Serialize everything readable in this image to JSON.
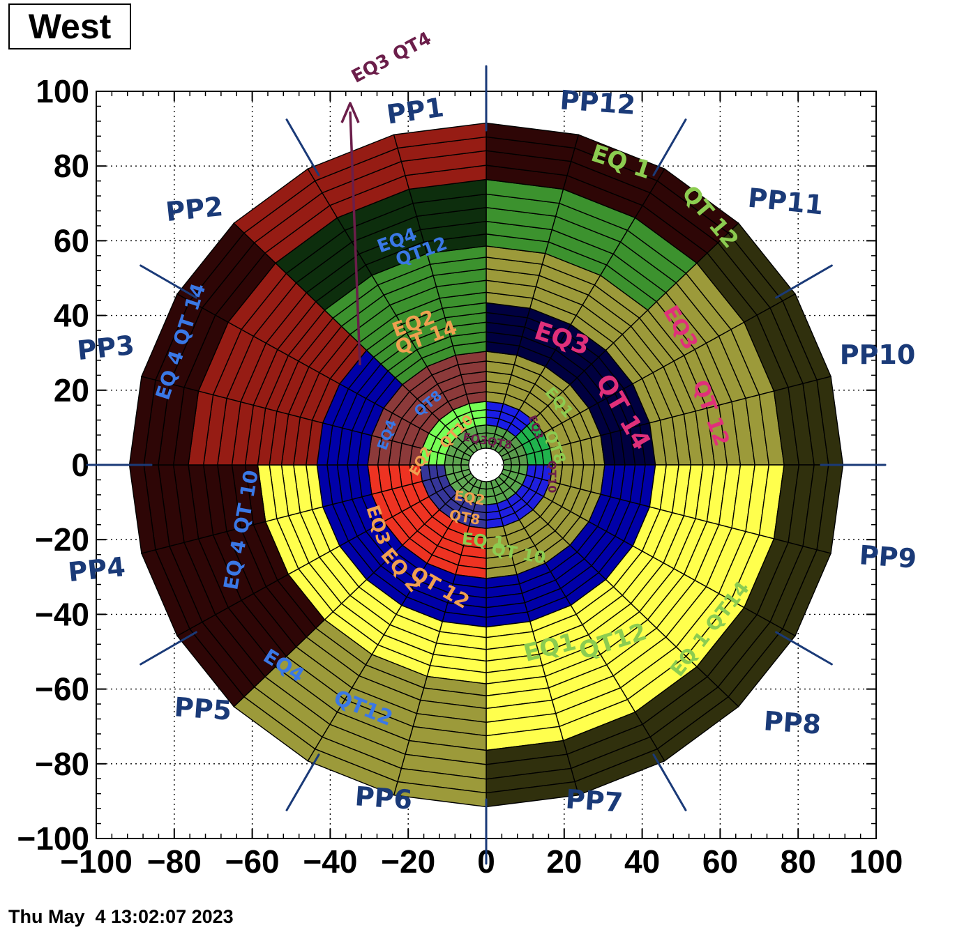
{
  "title": "West",
  "timestamp": "Thu May  4 13:02:07 2023",
  "chart_data": {
    "type": "polar-segment-map",
    "xlim": [
      -100,
      100
    ],
    "ylim": [
      -100,
      100
    ],
    "x_ticks": [
      -100,
      -80,
      -60,
      -40,
      -20,
      0,
      20,
      40,
      60,
      80,
      100
    ],
    "y_ticks": [
      -100,
      -80,
      -60,
      -40,
      -20,
      0,
      20,
      40,
      60,
      80,
      100
    ],
    "x_tick_labels": [
      "−100",
      "−80",
      "−60",
      "−40",
      "−20",
      "0",
      "20",
      "40",
      "60",
      "80",
      "100"
    ],
    "y_tick_labels": [
      "−100",
      "−80",
      "−60",
      "−40",
      "−20",
      "0",
      "20",
      "40",
      "60",
      "80",
      "100"
    ],
    "grid": true,
    "n_sectors": 24,
    "ring_radii": [
      4.5,
      6.5,
      8.6,
      10.7,
      12.8,
      14.8,
      17.0,
      19.6,
      22.4,
      25.0,
      27.8,
      30.4,
      33.0,
      35.6,
      38.2,
      40.8,
      43.4,
      46.2,
      49.4,
      52.5,
      55.6,
      58.6,
      61.8,
      65.2,
      68.9,
      72.5,
      76.4,
      80.2,
      84.1,
      87.8,
      91.5
    ],
    "regions": [
      {
        "from_sector": 0,
        "to_sector": 3,
        "ring_from": 0,
        "ring_to": 3,
        "color": "#54a049"
      },
      {
        "from_sector": 3,
        "to_sector": 6,
        "ring_from": 0,
        "ring_to": 3,
        "color": "#5a9b4c"
      },
      {
        "from_sector": 6,
        "to_sector": 12,
        "ring_from": 0,
        "ring_to": 3,
        "color": "#5aa64e"
      },
      {
        "from_sector": 12,
        "to_sector": 18,
        "ring_from": 0,
        "ring_to": 3,
        "color": "#62aa55"
      },
      {
        "from_sector": 18,
        "to_sector": 24,
        "ring_from": 0,
        "ring_to": 3,
        "color": "#5ea650"
      },
      {
        "from_sector": 0,
        "to_sector": 3,
        "ring_from": 3,
        "ring_to": 6,
        "color": "#1a1de6"
      },
      {
        "from_sector": 3,
        "to_sector": 6,
        "ring_from": 3,
        "ring_to": 6,
        "color": "#20b34d"
      },
      {
        "from_sector": 6,
        "to_sector": 12,
        "ring_from": 3,
        "ring_to": 6,
        "color": "#1f1fe0"
      },
      {
        "from_sector": 12,
        "to_sector": 18,
        "ring_from": 3,
        "ring_to": 6,
        "color": "#363699"
      },
      {
        "from_sector": 18,
        "to_sector": 24,
        "ring_from": 3,
        "ring_to": 6,
        "color": "#77ff55"
      },
      {
        "from_sector": 0,
        "to_sector": 6,
        "ring_from": 6,
        "ring_to": 11,
        "color": "#9c9a3a"
      },
      {
        "from_sector": 6,
        "to_sector": 12,
        "ring_from": 6,
        "ring_to": 11,
        "color": "#9c9a3a"
      },
      {
        "from_sector": 12,
        "to_sector": 18,
        "ring_from": 6,
        "ring_to": 11,
        "color": "#ee3322"
      },
      {
        "from_sector": 18,
        "to_sector": 24,
        "ring_from": 6,
        "ring_to": 11,
        "color": "#8c3a3a"
      },
      {
        "from_sector": 0,
        "to_sector": 6,
        "ring_from": 11,
        "ring_to": 16,
        "color": "#000040"
      },
      {
        "from_sector": 6,
        "to_sector": 12,
        "ring_from": 11,
        "ring_to": 16,
        "color": "#0000a8"
      },
      {
        "from_sector": 12,
        "to_sector": 21,
        "ring_from": 11,
        "ring_to": 16,
        "color": "#0000a8"
      },
      {
        "from_sector": 21,
        "to_sector": 24,
        "ring_from": 11,
        "ring_to": 16,
        "color": "#3c922e"
      },
      {
        "from_sector": 0,
        "to_sector": 6,
        "ring_from": 16,
        "ring_to": 21,
        "color": "#9c9a3a"
      },
      {
        "from_sector": 6,
        "to_sector": 12,
        "ring_from": 16,
        "ring_to": 21,
        "color": "#ffff4d"
      },
      {
        "from_sector": 12,
        "to_sector": 18,
        "ring_from": 16,
        "ring_to": 21,
        "color": "#ffff4d"
      },
      {
        "from_sector": 18,
        "to_sector": 21,
        "ring_from": 16,
        "ring_to": 21,
        "color": "#961c14"
      },
      {
        "from_sector": 21,
        "to_sector": 24,
        "ring_from": 16,
        "ring_to": 21,
        "color": "#3c922e"
      },
      {
        "from_sector": 0,
        "to_sector": 3,
        "ring_from": 21,
        "ring_to": 26,
        "color": "#3c922e"
      },
      {
        "from_sector": 3,
        "to_sector": 6,
        "ring_from": 21,
        "ring_to": 26,
        "color": "#9c9a3a"
      },
      {
        "from_sector": 6,
        "to_sector": 9,
        "ring_from": 21,
        "ring_to": 26,
        "color": "#ffff4d"
      },
      {
        "from_sector": 9,
        "to_sector": 12,
        "ring_from": 21,
        "ring_to": 26,
        "color": "#ffff4d"
      },
      {
        "from_sector": 12,
        "to_sector": 15,
        "ring_from": 21,
        "ring_to": 26,
        "color": "#9c9a3a"
      },
      {
        "from_sector": 15,
        "to_sector": 18,
        "ring_from": 21,
        "ring_to": 26,
        "color": "#2e0606"
      },
      {
        "from_sector": 18,
        "to_sector": 21,
        "ring_from": 21,
        "ring_to": 26,
        "color": "#961c14"
      },
      {
        "from_sector": 21,
        "to_sector": 24,
        "ring_from": 21,
        "ring_to": 26,
        "color": "#0d2e0d"
      },
      {
        "from_sector": 0,
        "to_sector": 3,
        "ring_from": 26,
        "ring_to": 31,
        "color": "#2e0606"
      },
      {
        "from_sector": 3,
        "to_sector": 6,
        "ring_from": 26,
        "ring_to": 31,
        "color": "#30300d"
      },
      {
        "from_sector": 6,
        "to_sector": 9,
        "ring_from": 26,
        "ring_to": 31,
        "color": "#30300d"
      },
      {
        "from_sector": 9,
        "to_sector": 12,
        "ring_from": 26,
        "ring_to": 31,
        "color": "#30300d"
      },
      {
        "from_sector": 12,
        "to_sector": 15,
        "ring_from": 26,
        "ring_to": 31,
        "color": "#9c9a3a"
      },
      {
        "from_sector": 15,
        "to_sector": 18,
        "ring_from": 26,
        "ring_to": 31,
        "color": "#2e0606"
      },
      {
        "from_sector": 18,
        "to_sector": 21,
        "ring_from": 26,
        "ring_to": 31,
        "color": "#2e0606"
      },
      {
        "from_sector": 21,
        "to_sector": 24,
        "ring_from": 26,
        "ring_to": 31,
        "color": "#961c14"
      }
    ]
  },
  "colors": {
    "pp_labels": "#1a3a78",
    "arrow": "#6b1e4a",
    "green_text": "#8ccc50",
    "blue_text": "#3a78e6",
    "orange_text": "#f0a050",
    "pink_text": "#e0307a"
  },
  "annotations": {
    "pp": [
      "PP1",
      "PP12",
      "PP11",
      "PP10",
      "PP9",
      "PP8",
      "PP7",
      "PP6",
      "PP5",
      "PP4",
      "PP3",
      "PP2"
    ],
    "arrow_label": "EQ3 QT4",
    "eq_labels": [
      {
        "text": "EQ 1",
        "color": "#8ccc50"
      },
      {
        "text": "QT 12",
        "color": "#8ccc50"
      },
      {
        "text": "EQ3",
        "color": "#e0307a"
      },
      {
        "text": "QT 14",
        "color": "#e0307a"
      },
      {
        "text": "EQ3",
        "color": "#e0307a"
      },
      {
        "text": "QT 12",
        "color": "#e0307a"
      },
      {
        "text": "EQ4",
        "color": "#3a78e6"
      },
      {
        "text": "QT12",
        "color": "#3a78e6"
      },
      {
        "text": "EQ 4  QT 14",
        "color": "#3a78e6"
      },
      {
        "text": "EQ 4  QT 10",
        "color": "#3a78e6"
      },
      {
        "text": "EQ4",
        "color": "#3a78e6"
      },
      {
        "text": "QT12",
        "color": "#3a78e6"
      },
      {
        "text": "EQ2",
        "color": "#f0a050"
      },
      {
        "text": "QT 14",
        "color": "#f0a050"
      },
      {
        "text": "EQ1",
        "color": "#8ccc50"
      },
      {
        "text": "QT12",
        "color": "#8ccc50"
      },
      {
        "text": "EQ 1  QT14",
        "color": "#8ccc50"
      },
      {
        "text": "EQ3",
        "color": "#f0a050"
      },
      {
        "text": "EQ 2",
        "color": "#f0a050"
      },
      {
        "text": "QT 12",
        "color": "#f0a050"
      },
      {
        "text": "EQ 1",
        "color": "#8ccc50"
      },
      {
        "text": "QT 10",
        "color": "#8ccc50"
      },
      {
        "text": "EQ1",
        "color": "#8ccc50"
      },
      {
        "text": "QT8",
        "color": "#8ccc50"
      },
      {
        "text": "EQ4",
        "color": "#3a78e6"
      },
      {
        "text": "QT8",
        "color": "#3a78e6"
      },
      {
        "text": "EQ2",
        "color": "#f0a050"
      },
      {
        "text": "QT10",
        "color": "#f0a050"
      },
      {
        "text": "EQ2",
        "color": "#f0a050"
      },
      {
        "text": "QT8",
        "color": "#f0a050"
      },
      {
        "text": "EQ3",
        "color": "#6b1e4a"
      },
      {
        "text": "QT10",
        "color": "#6b1e4a"
      },
      {
        "text": "EQ3QT8",
        "color": "#6b1e4a"
      }
    ]
  }
}
